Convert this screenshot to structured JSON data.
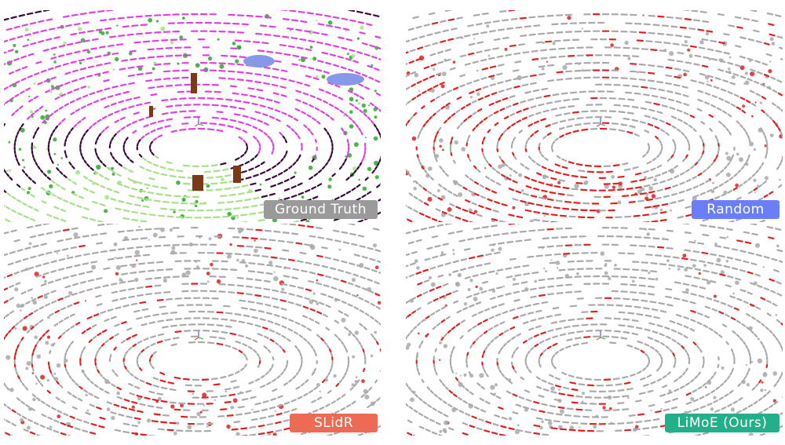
{
  "panels": [
    {
      "label": "Ground Truth",
      "label_color": "#9a9a9a",
      "style": "semantic",
      "palette": {
        "ground": "#a8e08a",
        "road": "#e040e0",
        "sidewalk": "#3a0a3a",
        "vegetation": "#2ea82e",
        "trunk": "#7a3a1a",
        "car": "#8898e8"
      }
    },
    {
      "label": "Random",
      "label_color": "#6a7ef5",
      "style": "error-map",
      "palette": {
        "correct": "#a9a9a9",
        "error": "#e02020"
      },
      "error_level": 0.45
    },
    {
      "label": "SLidR",
      "label_color": "#ef6a55",
      "style": "error-map",
      "palette": {
        "correct": "#a9a9a9",
        "error": "#e02020"
      },
      "error_level": 0.28
    },
    {
      "label": "LiMoE (Ours)",
      "label_color": "#21b08a",
      "style": "error-map",
      "palette": {
        "correct": "#a9a9a9",
        "error": "#e02020"
      },
      "error_level": 0.18
    }
  ]
}
